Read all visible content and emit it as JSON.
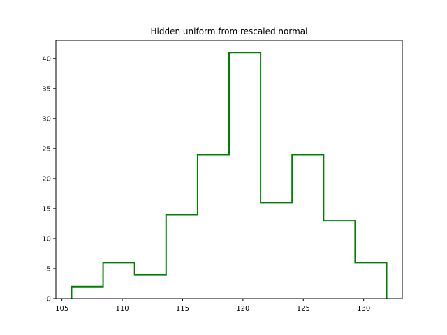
{
  "chart_data": {
    "type": "histogram",
    "histtype": "step",
    "title": "Hidden uniform from rescaled normal",
    "xlabel": "",
    "ylabel": "",
    "bin_edges": [
      105.8,
      108.41,
      111.02,
      113.63,
      116.24,
      118.85,
      121.46,
      124.07,
      126.68,
      129.29,
      131.9
    ],
    "counts": [
      2,
      6,
      4,
      14,
      24,
      41,
      16,
      24,
      13,
      6
    ],
    "xlim": [
      104.5,
      133.2
    ],
    "ylim": [
      0,
      43
    ],
    "xticks": [
      105,
      110,
      115,
      120,
      125,
      130
    ],
    "yticks": [
      0,
      5,
      10,
      15,
      20,
      25,
      30,
      35,
      40
    ],
    "line_color": "#008000",
    "grid": false
  }
}
